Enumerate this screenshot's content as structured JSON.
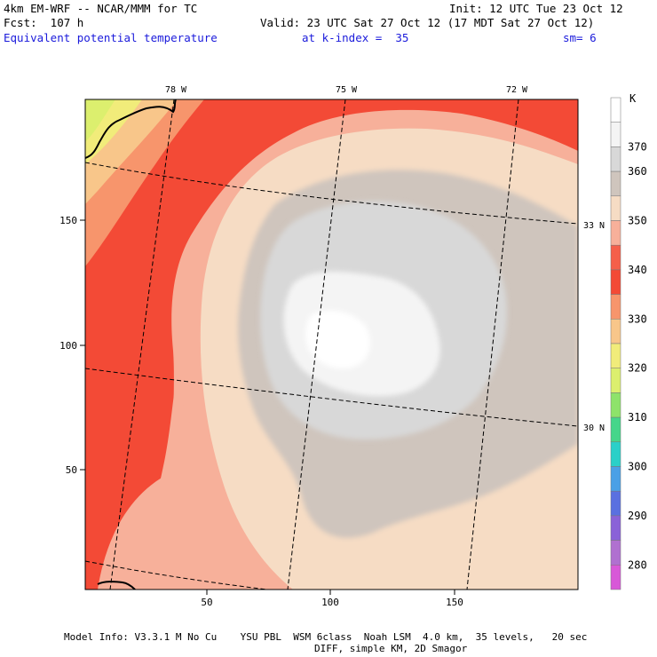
{
  "header": {
    "model_line": "4km EM-WRF -- NCAR/MMM for TC",
    "forecast_line": "Fcst:  107 h",
    "field_name": "Equivalent potential temperature",
    "k_index": "at k-index =  35",
    "smoothing": "sm= 6",
    "init_time": "Init: 12 UTC Tue 23 Oct 12",
    "valid_time": "Valid: 23 UTC Sat 27 Oct 12 (17 MDT Sat 27 Oct 12)"
  },
  "colorbar": {
    "unit": "K",
    "levels": [
      {
        "label": "",
        "color": "#ffffff"
      },
      {
        "label": "370",
        "color": "#f4f4f4"
      },
      {
        "label": "360",
        "color": "#d8d8d8"
      },
      {
        "label": "",
        "color": "#cfc5bd"
      },
      {
        "label": "350",
        "color": "#f6dcc4"
      },
      {
        "label": "",
        "color": "#f7b09a"
      },
      {
        "label": "340",
        "color": "#f55f4a"
      },
      {
        "label": "",
        "color": "#f34a36"
      },
      {
        "label": "330",
        "color": "#f7956c"
      },
      {
        "label": "",
        "color": "#f8c68a"
      },
      {
        "label": "320",
        "color": "#f1ec7a"
      },
      {
        "label": "",
        "color": "#dcef6e"
      },
      {
        "label": "310",
        "color": "#8ee36a"
      },
      {
        "label": "",
        "color": "#45d68a"
      },
      {
        "label": "300",
        "color": "#2ad0c8"
      },
      {
        "label": "",
        "color": "#4aa0e6"
      },
      {
        "label": "290",
        "color": "#5a70e0"
      },
      {
        "label": "",
        "color": "#8a62d8"
      },
      {
        "label": "280",
        "color": "#b070d0"
      },
      {
        "label": "",
        "color": "#d858d8"
      }
    ]
  },
  "axes": {
    "x_ticks": [
      "50",
      "100",
      "150"
    ],
    "y_ticks": [
      "50",
      "100",
      "150"
    ],
    "lon_labels": [
      "78 W",
      "75 W",
      "72 W"
    ],
    "lat_labels": [
      "33 N",
      "30 N"
    ]
  },
  "footer": {
    "line1": "Model Info: V3.3.1 M No Cu    YSU PBL  WSM 6class  Noah LSM  4.0 km,  35 levels,   20 sec",
    "line2": "DIFF, simple KM, 2D Smagor"
  }
}
